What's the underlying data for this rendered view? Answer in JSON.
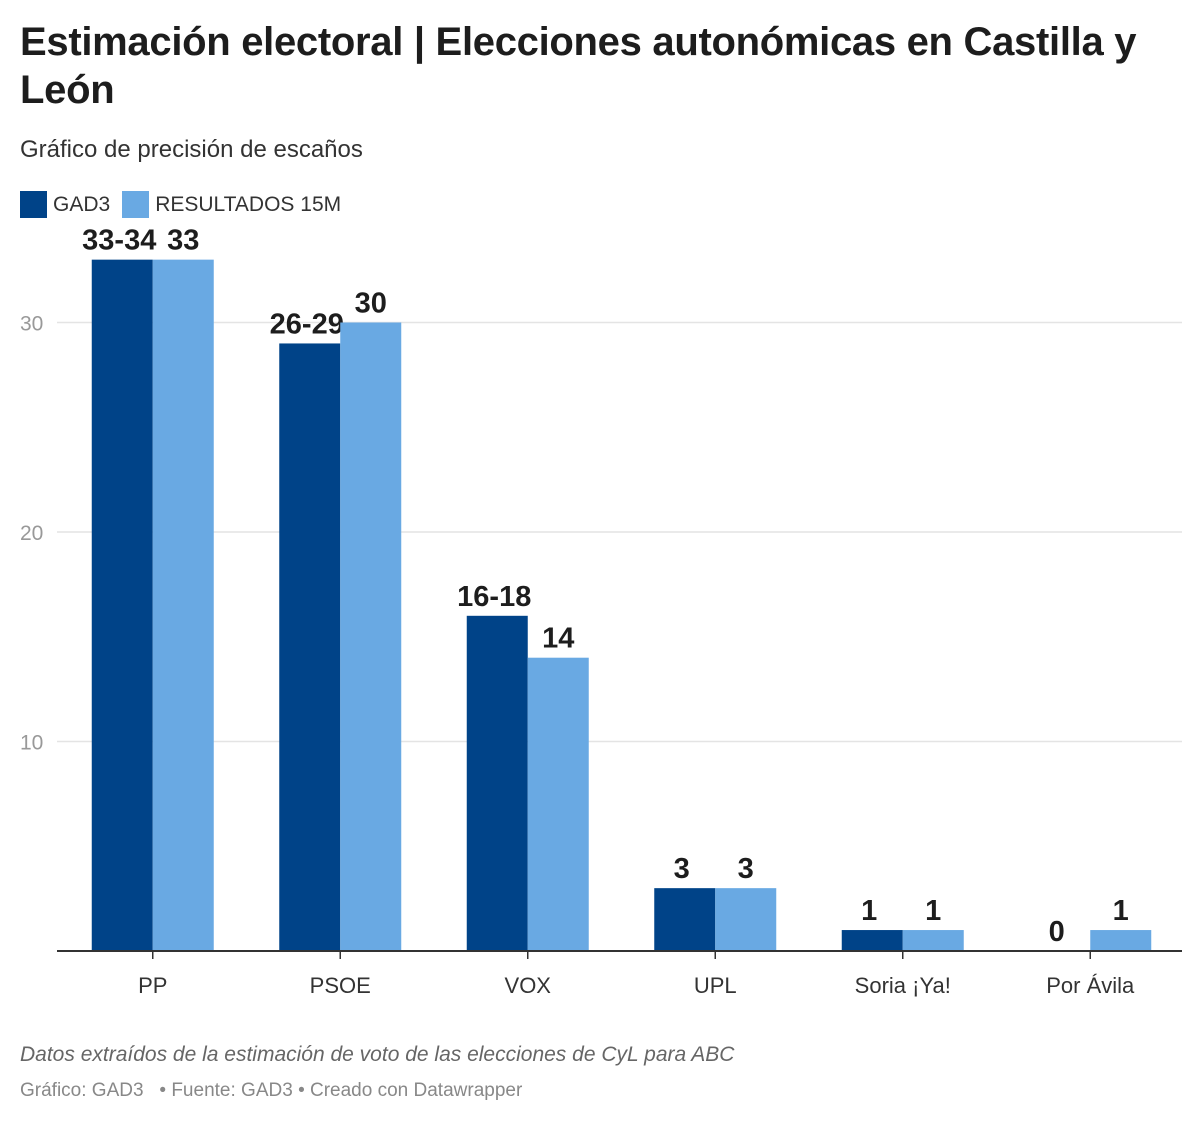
{
  "title": "Estimación electoral | Elecciones autonómicas en Castilla y León",
  "subtitle": "Gráfico de precisión de escaños",
  "colors": {
    "gad3": "#004388",
    "resultados": "#69a9e3",
    "grid": "#e4e4e4",
    "axis": "#333333"
  },
  "chart_data": {
    "type": "bar",
    "categories": [
      "PP",
      "PSOE",
      "VOX",
      "UPL",
      "Soria ¡Ya!",
      "Por Ávila"
    ],
    "series": [
      {
        "name": "GAD3",
        "values": [
          33,
          29,
          16,
          3,
          1,
          0
        ],
        "labels": [
          "33-34",
          "26-29",
          "16-18",
          "3",
          "1",
          "0"
        ]
      },
      {
        "name": "RESULTADOS 15M",
        "values": [
          33,
          30,
          14,
          3,
          1,
          1
        ],
        "labels": [
          "33",
          "30",
          "14",
          "3",
          "1",
          "1"
        ]
      }
    ],
    "yticks": [
      10,
      20,
      30
    ],
    "ylim": [
      0,
      33.5
    ],
    "grid": true,
    "legend": "top-left"
  },
  "notes": "Datos extraídos de la estimación de voto de las elecciones de CyL para ABC",
  "footer": {
    "grafico": "Gráfico: GAD3",
    "fuente": "Fuente: GAD3",
    "creado": "Creado con Datawrapper"
  }
}
